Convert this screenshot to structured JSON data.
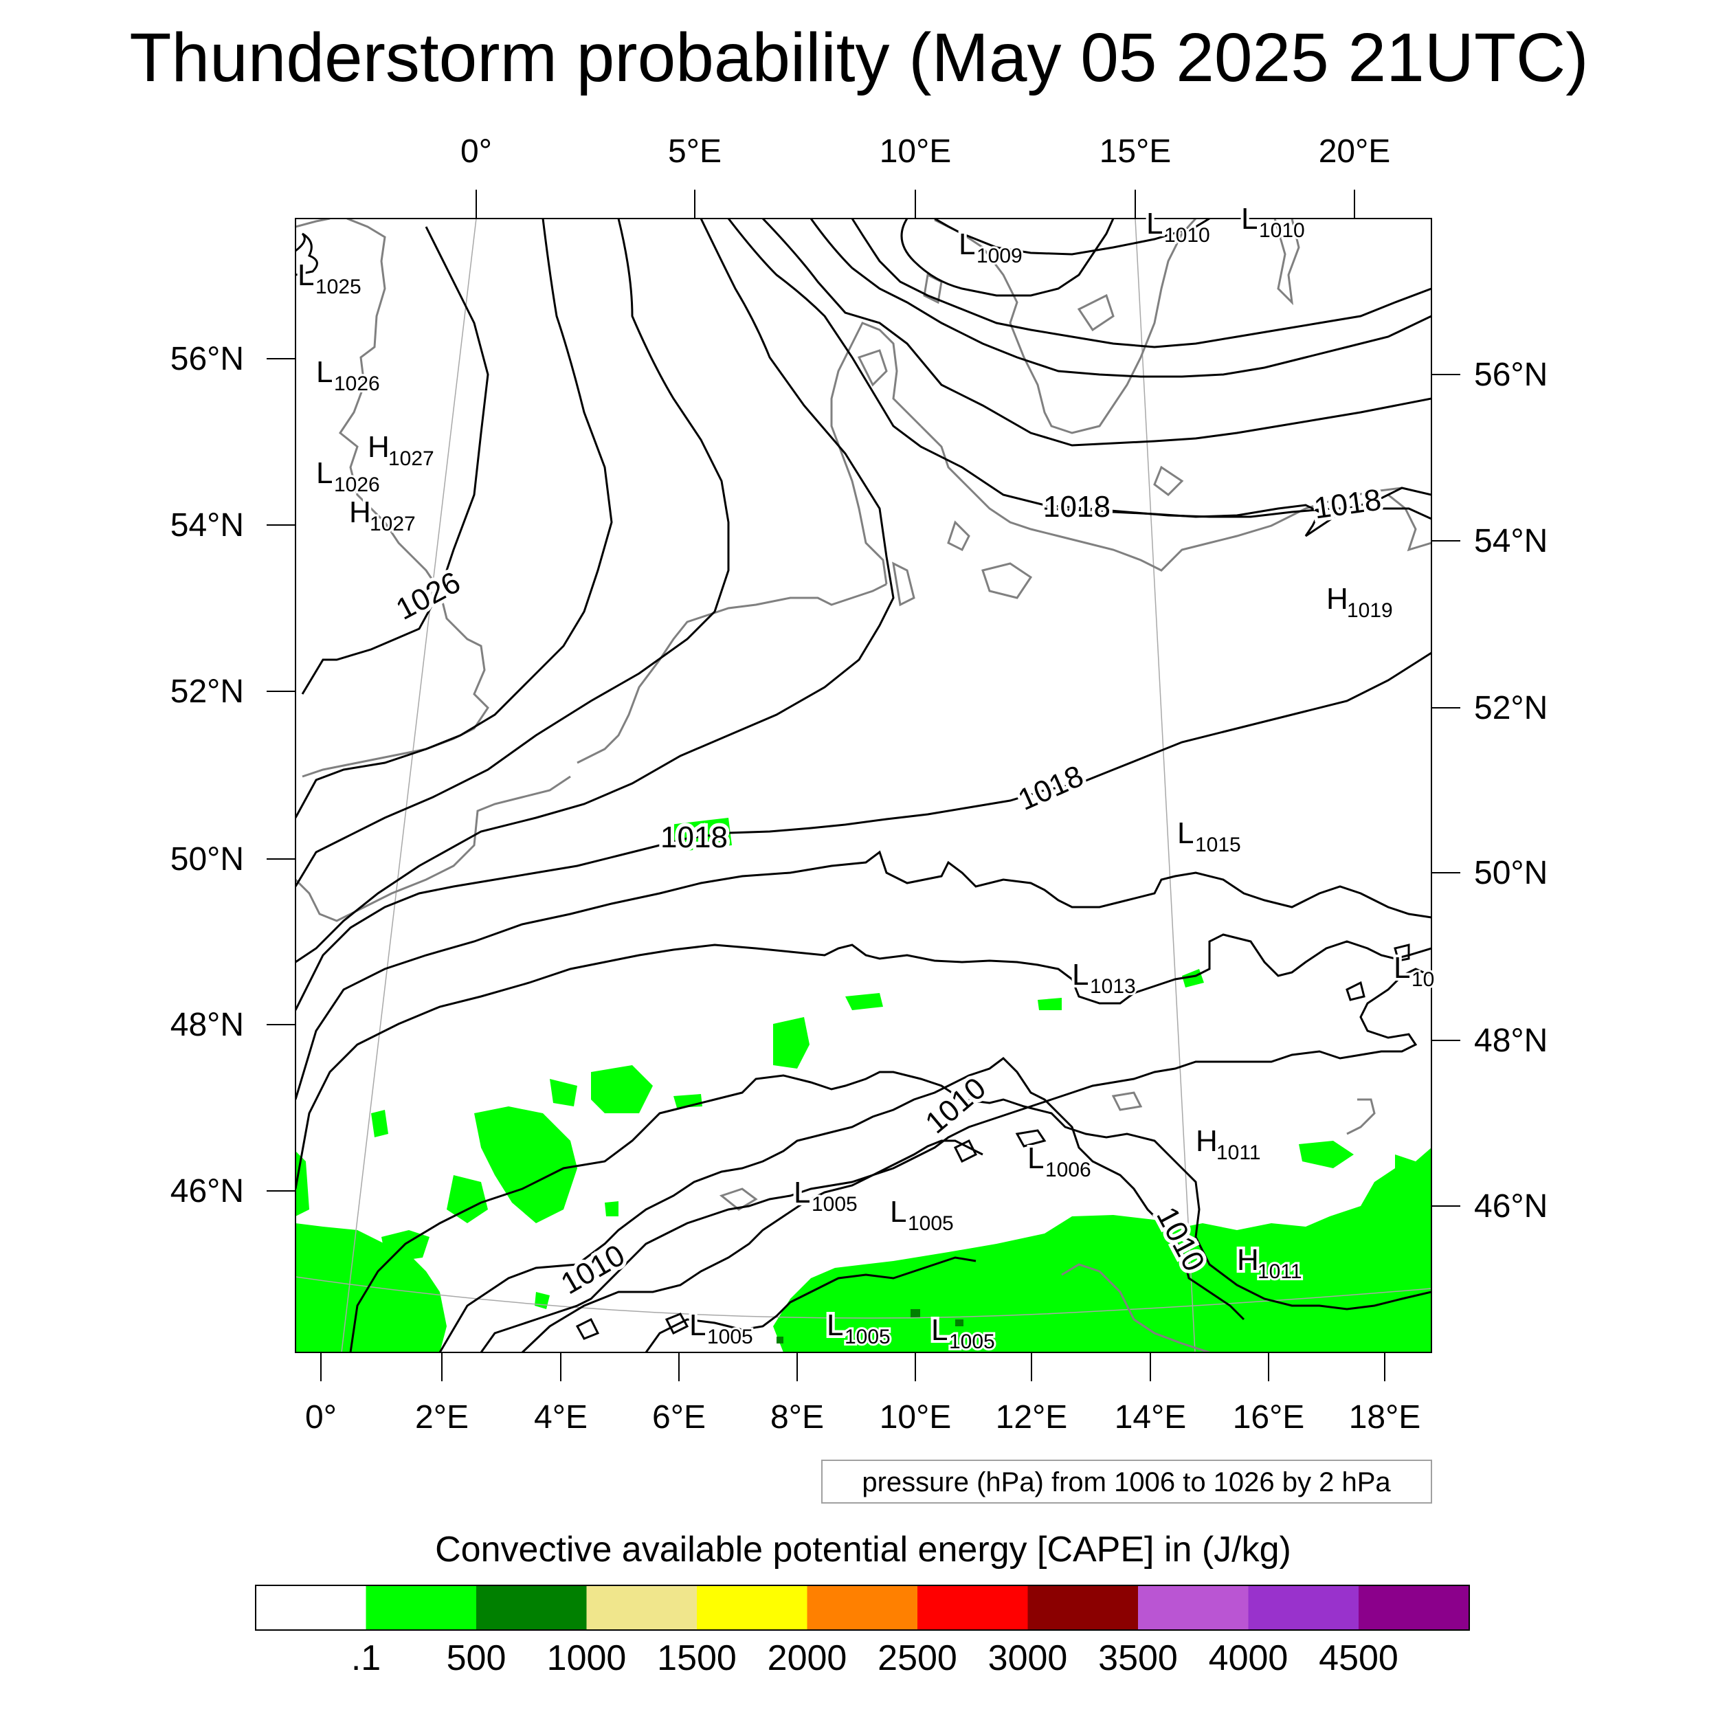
{
  "title": "Thunderstorm probability (May 05 2025 21UTC)",
  "top_lon_labels": [
    "0°",
    "5°E",
    "10°E",
    "15°E",
    "20°E"
  ],
  "bottom_lon_labels": [
    "0°",
    "2°E",
    "4°E",
    "6°E",
    "8°E",
    "10°E",
    "12°E",
    "14°E",
    "16°E",
    "18°E"
  ],
  "left_lat_labels": [
    "56°N",
    "54°N",
    "52°N",
    "50°N",
    "48°N",
    "46°N"
  ],
  "right_lat_labels": [
    "56°N",
    "54°N",
    "52°N",
    "50°N",
    "48°N",
    "46°N"
  ],
  "contour_labels": [
    "1026",
    "1018",
    "1018",
    "1018",
    "1018",
    "1010",
    "1010",
    "1010"
  ],
  "pressure_centers": [
    {
      "type": "L",
      "value": "1025"
    },
    {
      "type": "L",
      "value": "1026"
    },
    {
      "type": "H",
      "value": "1027"
    },
    {
      "type": "L",
      "value": "1026"
    },
    {
      "type": "H",
      "value": "1027"
    },
    {
      "type": "L",
      "value": "1009"
    },
    {
      "type": "L",
      "value": "1010"
    },
    {
      "type": "L",
      "value": "1010"
    },
    {
      "type": "H",
      "value": "1019"
    },
    {
      "type": "L",
      "value": "1015"
    },
    {
      "type": "L",
      "value": "1013"
    },
    {
      "type": "L",
      "value": "10"
    },
    {
      "type": "H",
      "value": "1011"
    },
    {
      "type": "L",
      "value": "1006"
    },
    {
      "type": "L",
      "value": "1005"
    },
    {
      "type": "L",
      "value": "1005"
    },
    {
      "type": "H",
      "value": "1011"
    },
    {
      "type": "L",
      "value": "1005"
    },
    {
      "type": "L",
      "value": "1005"
    },
    {
      "type": "L",
      "value": "1005"
    }
  ],
  "pressure_note": "pressure (hPa) from 1006 to 1026 by 2 hPa",
  "colorbar": {
    "title": "Convective available potential energy [CAPE] in (J/kg)",
    "colors": [
      "#ffffff",
      "#00ff00",
      "#008000",
      "#f0e68c",
      "#ffff00",
      "#ff8000",
      "#ff0000",
      "#8b0000",
      "#ba55d3",
      "#9932cc",
      "#8b008b"
    ],
    "labels": [
      ".1",
      "500",
      "1000",
      "1500",
      "2000",
      "2500",
      "3000",
      "3500",
      "4000",
      "4500"
    ]
  },
  "colors": {
    "cape_green": "#00ff00",
    "cape_darkgreen": "#008000",
    "coast": "#808080",
    "isobar": "#000000"
  }
}
